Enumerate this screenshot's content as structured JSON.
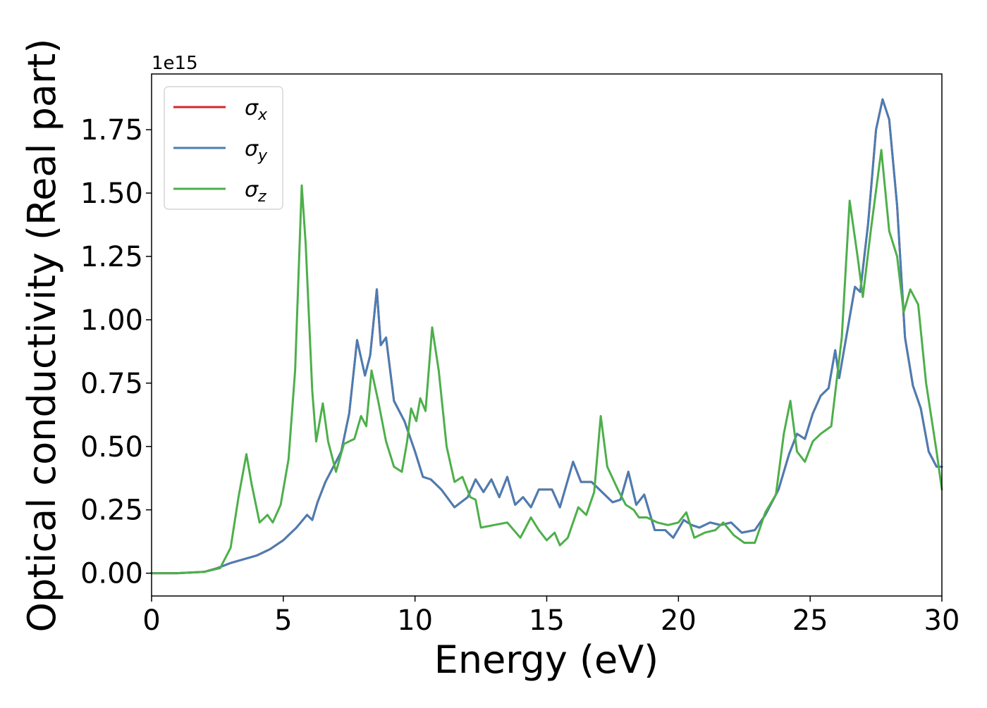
{
  "chart_data": {
    "type": "line",
    "xlabel": "Energy (eV)",
    "ylabel": "Optical conductivity (Real part)",
    "offset_text": "1e15",
    "xlim": [
      0,
      30
    ],
    "ylim": [
      -0.09,
      1.97
    ],
    "x_ticks": [
      0,
      5,
      10,
      15,
      20,
      25,
      30
    ],
    "x_tick_labels": [
      "0",
      "5",
      "10",
      "15",
      "20",
      "25",
      "30"
    ],
    "y_ticks": [
      0.0,
      0.25,
      0.5,
      0.75,
      1.0,
      1.25,
      1.5,
      1.75
    ],
    "y_tick_labels": [
      "0.00",
      "0.25",
      "0.50",
      "0.75",
      "1.00",
      "1.25",
      "1.50",
      "1.75"
    ],
    "legend_position": "upper-left",
    "grid": false,
    "series": [
      {
        "name": "σ",
        "subscript": "x",
        "color": "#d62728",
        "points": [
          [
            0,
            0
          ],
          [
            1,
            0
          ],
          [
            2,
            0.005
          ],
          [
            2.5,
            0.02
          ],
          [
            3,
            0.04
          ],
          [
            3.5,
            0.055
          ],
          [
            4,
            0.07
          ],
          [
            4.5,
            0.095
          ],
          [
            5,
            0.13
          ],
          [
            5.5,
            0.18
          ],
          [
            5.9,
            0.23
          ],
          [
            6.1,
            0.21
          ],
          [
            6.3,
            0.28
          ],
          [
            6.6,
            0.36
          ],
          [
            7,
            0.44
          ],
          [
            7.2,
            0.48
          ],
          [
            7.5,
            0.63
          ],
          [
            7.8,
            0.92
          ],
          [
            8.1,
            0.78
          ],
          [
            8.3,
            0.86
          ],
          [
            8.55,
            1.12
          ],
          [
            8.7,
            0.9
          ],
          [
            8.9,
            0.93
          ],
          [
            9.2,
            0.68
          ],
          [
            9.6,
            0.6
          ],
          [
            10,
            0.48
          ],
          [
            10.3,
            0.38
          ],
          [
            10.6,
            0.37
          ],
          [
            11,
            0.33
          ],
          [
            11.5,
            0.26
          ],
          [
            12,
            0.3
          ],
          [
            12.3,
            0.37
          ],
          [
            12.6,
            0.32
          ],
          [
            12.9,
            0.37
          ],
          [
            13.2,
            0.3
          ],
          [
            13.5,
            0.38
          ],
          [
            13.8,
            0.27
          ],
          [
            14.1,
            0.3
          ],
          [
            14.4,
            0.26
          ],
          [
            14.7,
            0.33
          ],
          [
            15.2,
            0.33
          ],
          [
            15.5,
            0.26
          ],
          [
            16,
            0.44
          ],
          [
            16.3,
            0.36
          ],
          [
            16.7,
            0.36
          ],
          [
            17.1,
            0.32
          ],
          [
            17.5,
            0.28
          ],
          [
            17.8,
            0.29
          ],
          [
            18.1,
            0.4
          ],
          [
            18.4,
            0.27
          ],
          [
            18.7,
            0.31
          ],
          [
            19.1,
            0.17
          ],
          [
            19.5,
            0.17
          ],
          [
            19.8,
            0.14
          ],
          [
            20.2,
            0.21
          ],
          [
            20.5,
            0.19
          ],
          [
            20.8,
            0.18
          ],
          [
            21.2,
            0.2
          ],
          [
            21.6,
            0.19
          ],
          [
            22,
            0.2
          ],
          [
            22.4,
            0.16
          ],
          [
            22.9,
            0.17
          ],
          [
            23.3,
            0.23
          ],
          [
            23.8,
            0.33
          ],
          [
            24.2,
            0.47
          ],
          [
            24.5,
            0.55
          ],
          [
            24.8,
            0.53
          ],
          [
            25.1,
            0.63
          ],
          [
            25.4,
            0.7
          ],
          [
            25.7,
            0.73
          ],
          [
            25.95,
            0.88
          ],
          [
            26.1,
            0.77
          ],
          [
            26.4,
            0.95
          ],
          [
            26.7,
            1.13
          ],
          [
            26.9,
            1.11
          ],
          [
            27.2,
            1.38
          ],
          [
            27.5,
            1.75
          ],
          [
            27.75,
            1.87
          ],
          [
            28,
            1.79
          ],
          [
            28.3,
            1.45
          ],
          [
            28.6,
            0.93
          ],
          [
            28.9,
            0.74
          ],
          [
            29.2,
            0.65
          ],
          [
            29.5,
            0.48
          ],
          [
            29.8,
            0.42
          ],
          [
            30,
            0.42
          ]
        ]
      },
      {
        "name": "σ",
        "subscript": "y",
        "color": "#4a7db3",
        "points": [
          [
            0,
            0
          ],
          [
            1,
            0
          ],
          [
            2,
            0.005
          ],
          [
            2.5,
            0.02
          ],
          [
            3,
            0.04
          ],
          [
            3.5,
            0.055
          ],
          [
            4,
            0.07
          ],
          [
            4.5,
            0.095
          ],
          [
            5,
            0.13
          ],
          [
            5.5,
            0.18
          ],
          [
            5.9,
            0.23
          ],
          [
            6.1,
            0.21
          ],
          [
            6.3,
            0.28
          ],
          [
            6.6,
            0.36
          ],
          [
            7,
            0.44
          ],
          [
            7.2,
            0.48
          ],
          [
            7.5,
            0.63
          ],
          [
            7.8,
            0.92
          ],
          [
            8.1,
            0.78
          ],
          [
            8.3,
            0.86
          ],
          [
            8.55,
            1.12
          ],
          [
            8.7,
            0.9
          ],
          [
            8.9,
            0.93
          ],
          [
            9.2,
            0.68
          ],
          [
            9.6,
            0.6
          ],
          [
            10,
            0.48
          ],
          [
            10.3,
            0.38
          ],
          [
            10.6,
            0.37
          ],
          [
            11,
            0.33
          ],
          [
            11.5,
            0.26
          ],
          [
            12,
            0.3
          ],
          [
            12.3,
            0.37
          ],
          [
            12.6,
            0.32
          ],
          [
            12.9,
            0.37
          ],
          [
            13.2,
            0.3
          ],
          [
            13.5,
            0.38
          ],
          [
            13.8,
            0.27
          ],
          [
            14.1,
            0.3
          ],
          [
            14.4,
            0.26
          ],
          [
            14.7,
            0.33
          ],
          [
            15.2,
            0.33
          ],
          [
            15.5,
            0.26
          ],
          [
            16,
            0.44
          ],
          [
            16.3,
            0.36
          ],
          [
            16.7,
            0.36
          ],
          [
            17.1,
            0.32
          ],
          [
            17.5,
            0.28
          ],
          [
            17.8,
            0.29
          ],
          [
            18.1,
            0.4
          ],
          [
            18.4,
            0.27
          ],
          [
            18.7,
            0.31
          ],
          [
            19.1,
            0.17
          ],
          [
            19.5,
            0.17
          ],
          [
            19.8,
            0.14
          ],
          [
            20.2,
            0.21
          ],
          [
            20.5,
            0.19
          ],
          [
            20.8,
            0.18
          ],
          [
            21.2,
            0.2
          ],
          [
            21.6,
            0.19
          ],
          [
            22,
            0.2
          ],
          [
            22.4,
            0.16
          ],
          [
            22.9,
            0.17
          ],
          [
            23.3,
            0.23
          ],
          [
            23.8,
            0.33
          ],
          [
            24.2,
            0.47
          ],
          [
            24.5,
            0.55
          ],
          [
            24.8,
            0.53
          ],
          [
            25.1,
            0.63
          ],
          [
            25.4,
            0.7
          ],
          [
            25.7,
            0.73
          ],
          [
            25.95,
            0.88
          ],
          [
            26.1,
            0.77
          ],
          [
            26.4,
            0.95
          ],
          [
            26.7,
            1.13
          ],
          [
            26.9,
            1.11
          ],
          [
            27.2,
            1.38
          ],
          [
            27.5,
            1.75
          ],
          [
            27.75,
            1.87
          ],
          [
            28,
            1.79
          ],
          [
            28.3,
            1.45
          ],
          [
            28.6,
            0.93
          ],
          [
            28.9,
            0.74
          ],
          [
            29.2,
            0.65
          ],
          [
            29.5,
            0.48
          ],
          [
            29.8,
            0.42
          ],
          [
            30,
            0.42
          ]
        ]
      },
      {
        "name": "σ",
        "subscript": "z",
        "color": "#4daf4a",
        "points": [
          [
            0,
            0
          ],
          [
            1,
            0
          ],
          [
            2,
            0.005
          ],
          [
            2.6,
            0.02
          ],
          [
            3,
            0.1
          ],
          [
            3.3,
            0.3
          ],
          [
            3.6,
            0.47
          ],
          [
            3.8,
            0.35
          ],
          [
            4.1,
            0.2
          ],
          [
            4.4,
            0.23
          ],
          [
            4.6,
            0.2
          ],
          [
            4.9,
            0.27
          ],
          [
            5.2,
            0.45
          ],
          [
            5.45,
            0.8
          ],
          [
            5.7,
            1.53
          ],
          [
            5.85,
            1.3
          ],
          [
            6.1,
            0.72
          ],
          [
            6.25,
            0.52
          ],
          [
            6.5,
            0.67
          ],
          [
            6.7,
            0.52
          ],
          [
            7,
            0.4
          ],
          [
            7.3,
            0.51
          ],
          [
            7.7,
            0.53
          ],
          [
            7.95,
            0.62
          ],
          [
            8.15,
            0.58
          ],
          [
            8.35,
            0.8
          ],
          [
            8.6,
            0.68
          ],
          [
            8.9,
            0.52
          ],
          [
            9.2,
            0.42
          ],
          [
            9.5,
            0.4
          ],
          [
            9.7,
            0.52
          ],
          [
            9.85,
            0.65
          ],
          [
            10.05,
            0.6
          ],
          [
            10.2,
            0.69
          ],
          [
            10.4,
            0.64
          ],
          [
            10.65,
            0.97
          ],
          [
            10.9,
            0.8
          ],
          [
            11.2,
            0.5
          ],
          [
            11.5,
            0.36
          ],
          [
            11.8,
            0.38
          ],
          [
            12.1,
            0.3
          ],
          [
            12.3,
            0.29
          ],
          [
            12.5,
            0.18
          ],
          [
            13,
            0.19
          ],
          [
            13.5,
            0.2
          ],
          [
            14,
            0.14
          ],
          [
            14.4,
            0.22
          ],
          [
            14.7,
            0.17
          ],
          [
            15,
            0.13
          ],
          [
            15.3,
            0.16
          ],
          [
            15.5,
            0.11
          ],
          [
            15.8,
            0.14
          ],
          [
            16.2,
            0.26
          ],
          [
            16.5,
            0.23
          ],
          [
            16.8,
            0.32
          ],
          [
            17.05,
            0.62
          ],
          [
            17.3,
            0.42
          ],
          [
            17.7,
            0.33
          ],
          [
            18,
            0.27
          ],
          [
            18.3,
            0.25
          ],
          [
            18.5,
            0.22
          ],
          [
            18.8,
            0.22
          ],
          [
            19.2,
            0.2
          ],
          [
            19.6,
            0.19
          ],
          [
            20,
            0.2
          ],
          [
            20.3,
            0.24
          ],
          [
            20.6,
            0.14
          ],
          [
            21,
            0.16
          ],
          [
            21.4,
            0.17
          ],
          [
            21.7,
            0.2
          ],
          [
            22.1,
            0.15
          ],
          [
            22.5,
            0.12
          ],
          [
            22.9,
            0.12
          ],
          [
            23.3,
            0.24
          ],
          [
            23.7,
            0.31
          ],
          [
            24,
            0.55
          ],
          [
            24.25,
            0.68
          ],
          [
            24.5,
            0.48
          ],
          [
            24.8,
            0.44
          ],
          [
            25.1,
            0.52
          ],
          [
            25.4,
            0.55
          ],
          [
            25.8,
            0.58
          ],
          [
            26.2,
            0.93
          ],
          [
            26.5,
            1.47
          ],
          [
            26.8,
            1.25
          ],
          [
            27,
            1.09
          ],
          [
            27.3,
            1.35
          ],
          [
            27.7,
            1.67
          ],
          [
            28,
            1.35
          ],
          [
            28.3,
            1.25
          ],
          [
            28.55,
            1.03
          ],
          [
            28.8,
            1.12
          ],
          [
            29.1,
            1.06
          ],
          [
            29.4,
            0.75
          ],
          [
            29.8,
            0.48
          ],
          [
            30,
            0.33
          ]
        ]
      }
    ]
  }
}
